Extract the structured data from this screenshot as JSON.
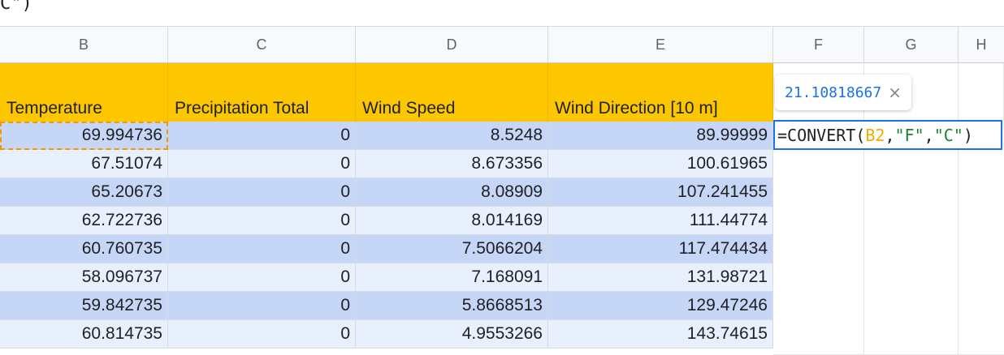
{
  "formula_bar_fragment": "C\")",
  "columns": [
    "B",
    "C",
    "D",
    "E",
    "F",
    "G",
    "H"
  ],
  "header_row": [
    "Temperature",
    "Precipitation Total",
    "Wind Speed",
    "Wind Direction [10 m]"
  ],
  "rows": [
    [
      "69.994736",
      "0",
      "8.5248",
      "89.99999"
    ],
    [
      "67.51074",
      "0",
      "8.673356",
      "100.61965"
    ],
    [
      "65.20673",
      "0",
      "8.08909",
      "107.241455"
    ],
    [
      "62.722736",
      "0",
      "8.014169",
      "111.44774"
    ],
    [
      "60.760735",
      "0",
      "7.5066204",
      "117.474434"
    ],
    [
      "58.096737",
      "0",
      "7.168091",
      "131.98721"
    ],
    [
      "59.842735",
      "0",
      "5.8668513",
      "129.47246"
    ],
    [
      "60.814735",
      "0",
      "4.9553266",
      "143.74615"
    ]
  ],
  "editing_cell": {
    "prefix": "=CONVERT(",
    "ref": "B2",
    "sep1": ",",
    "arg2": "\"F\"",
    "sep2": ",",
    "arg3": "\"C\"",
    "suffix": ")"
  },
  "preview_tooltip": {
    "value": "21.10818667",
    "close_icon": "×"
  },
  "colors": {
    "header_fill": "#fcc600",
    "band_dark": "#c6d6f7",
    "band_light": "#e8f0fe",
    "edit_border": "#1a73e8",
    "ref_color": "#f9ab00",
    "string_color": "#188038"
  }
}
